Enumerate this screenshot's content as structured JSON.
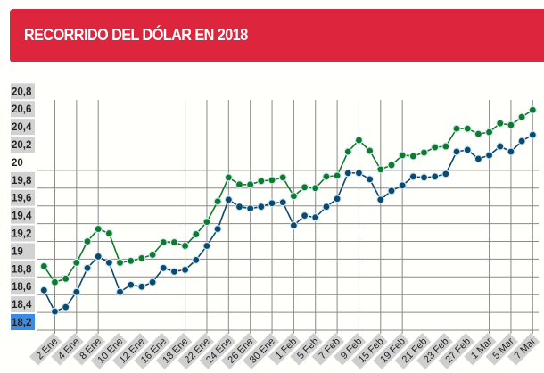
{
  "header": {
    "title": "RECORRIDO DEL DÓLAR EN 2018"
  },
  "colors": {
    "banner": "#dd263d",
    "green": "#0f7a2a",
    "blue": "#0b4a6e",
    "ylabel_bg": "#d2d2d2",
    "ylabel_highlight": "#3d8be0",
    "xlabel_bg": "#cfcfcf"
  },
  "chart_data": {
    "type": "line",
    "title": "RECORRIDO DEL DÓLAR EN 2018",
    "ylim": [
      18.2,
      20.8
    ],
    "y_ticks": [
      "20,8",
      "20,6",
      "20,4",
      "20,2",
      "20",
      "19,8",
      "19,6",
      "19,4",
      "19,2",
      "19",
      "18,8",
      "18,6",
      "18,4",
      "18,2"
    ],
    "x_labels": [
      "2 Ene",
      "4 Ene",
      "8 Ene",
      "10 Ene",
      "12 Ene",
      "16 Ene",
      "18 Ene",
      "22 Ene",
      "24 Ene",
      "26 Ene",
      "30 Ene",
      "1 Feb",
      "5 Feb",
      "7 Feb",
      "9 Feb",
      "15 Feb",
      "19 Feb",
      "21 Feb",
      "23 Feb",
      "27 Feb",
      "1 Mar",
      "5 Mar",
      "7 Mar"
    ],
    "label_every": 2,
    "series": [
      {
        "name": "green",
        "values": [
          18.92,
          18.74,
          18.78,
          18.96,
          19.2,
          19.34,
          19.29,
          18.96,
          18.98,
          19.01,
          19.05,
          19.19,
          19.19,
          19.15,
          19.28,
          19.42,
          19.65,
          19.92,
          19.84,
          19.84,
          19.88,
          19.89,
          19.92,
          19.71,
          19.81,
          19.8,
          19.93,
          19.94,
          20.21,
          20.34,
          20.22,
          20.01,
          20.06,
          20.17,
          20.16,
          20.2,
          20.26,
          20.27,
          20.47,
          20.47,
          20.41,
          20.43,
          20.53,
          20.51,
          20.6,
          20.68
        ]
      },
      {
        "name": "blue",
        "values": [
          18.65,
          18.41,
          18.46,
          18.63,
          18.9,
          19.03,
          18.96,
          18.63,
          18.71,
          18.69,
          18.74,
          18.9,
          18.86,
          18.88,
          18.99,
          19.15,
          19.34,
          19.67,
          19.59,
          19.57,
          19.59,
          19.63,
          19.64,
          19.38,
          19.49,
          19.47,
          19.59,
          19.68,
          19.97,
          19.97,
          19.9,
          19.67,
          19.77,
          19.83,
          19.93,
          19.92,
          19.93,
          19.96,
          20.21,
          20.23,
          20.13,
          20.17,
          20.27,
          20.21,
          20.33,
          20.4
        ]
      }
    ]
  }
}
